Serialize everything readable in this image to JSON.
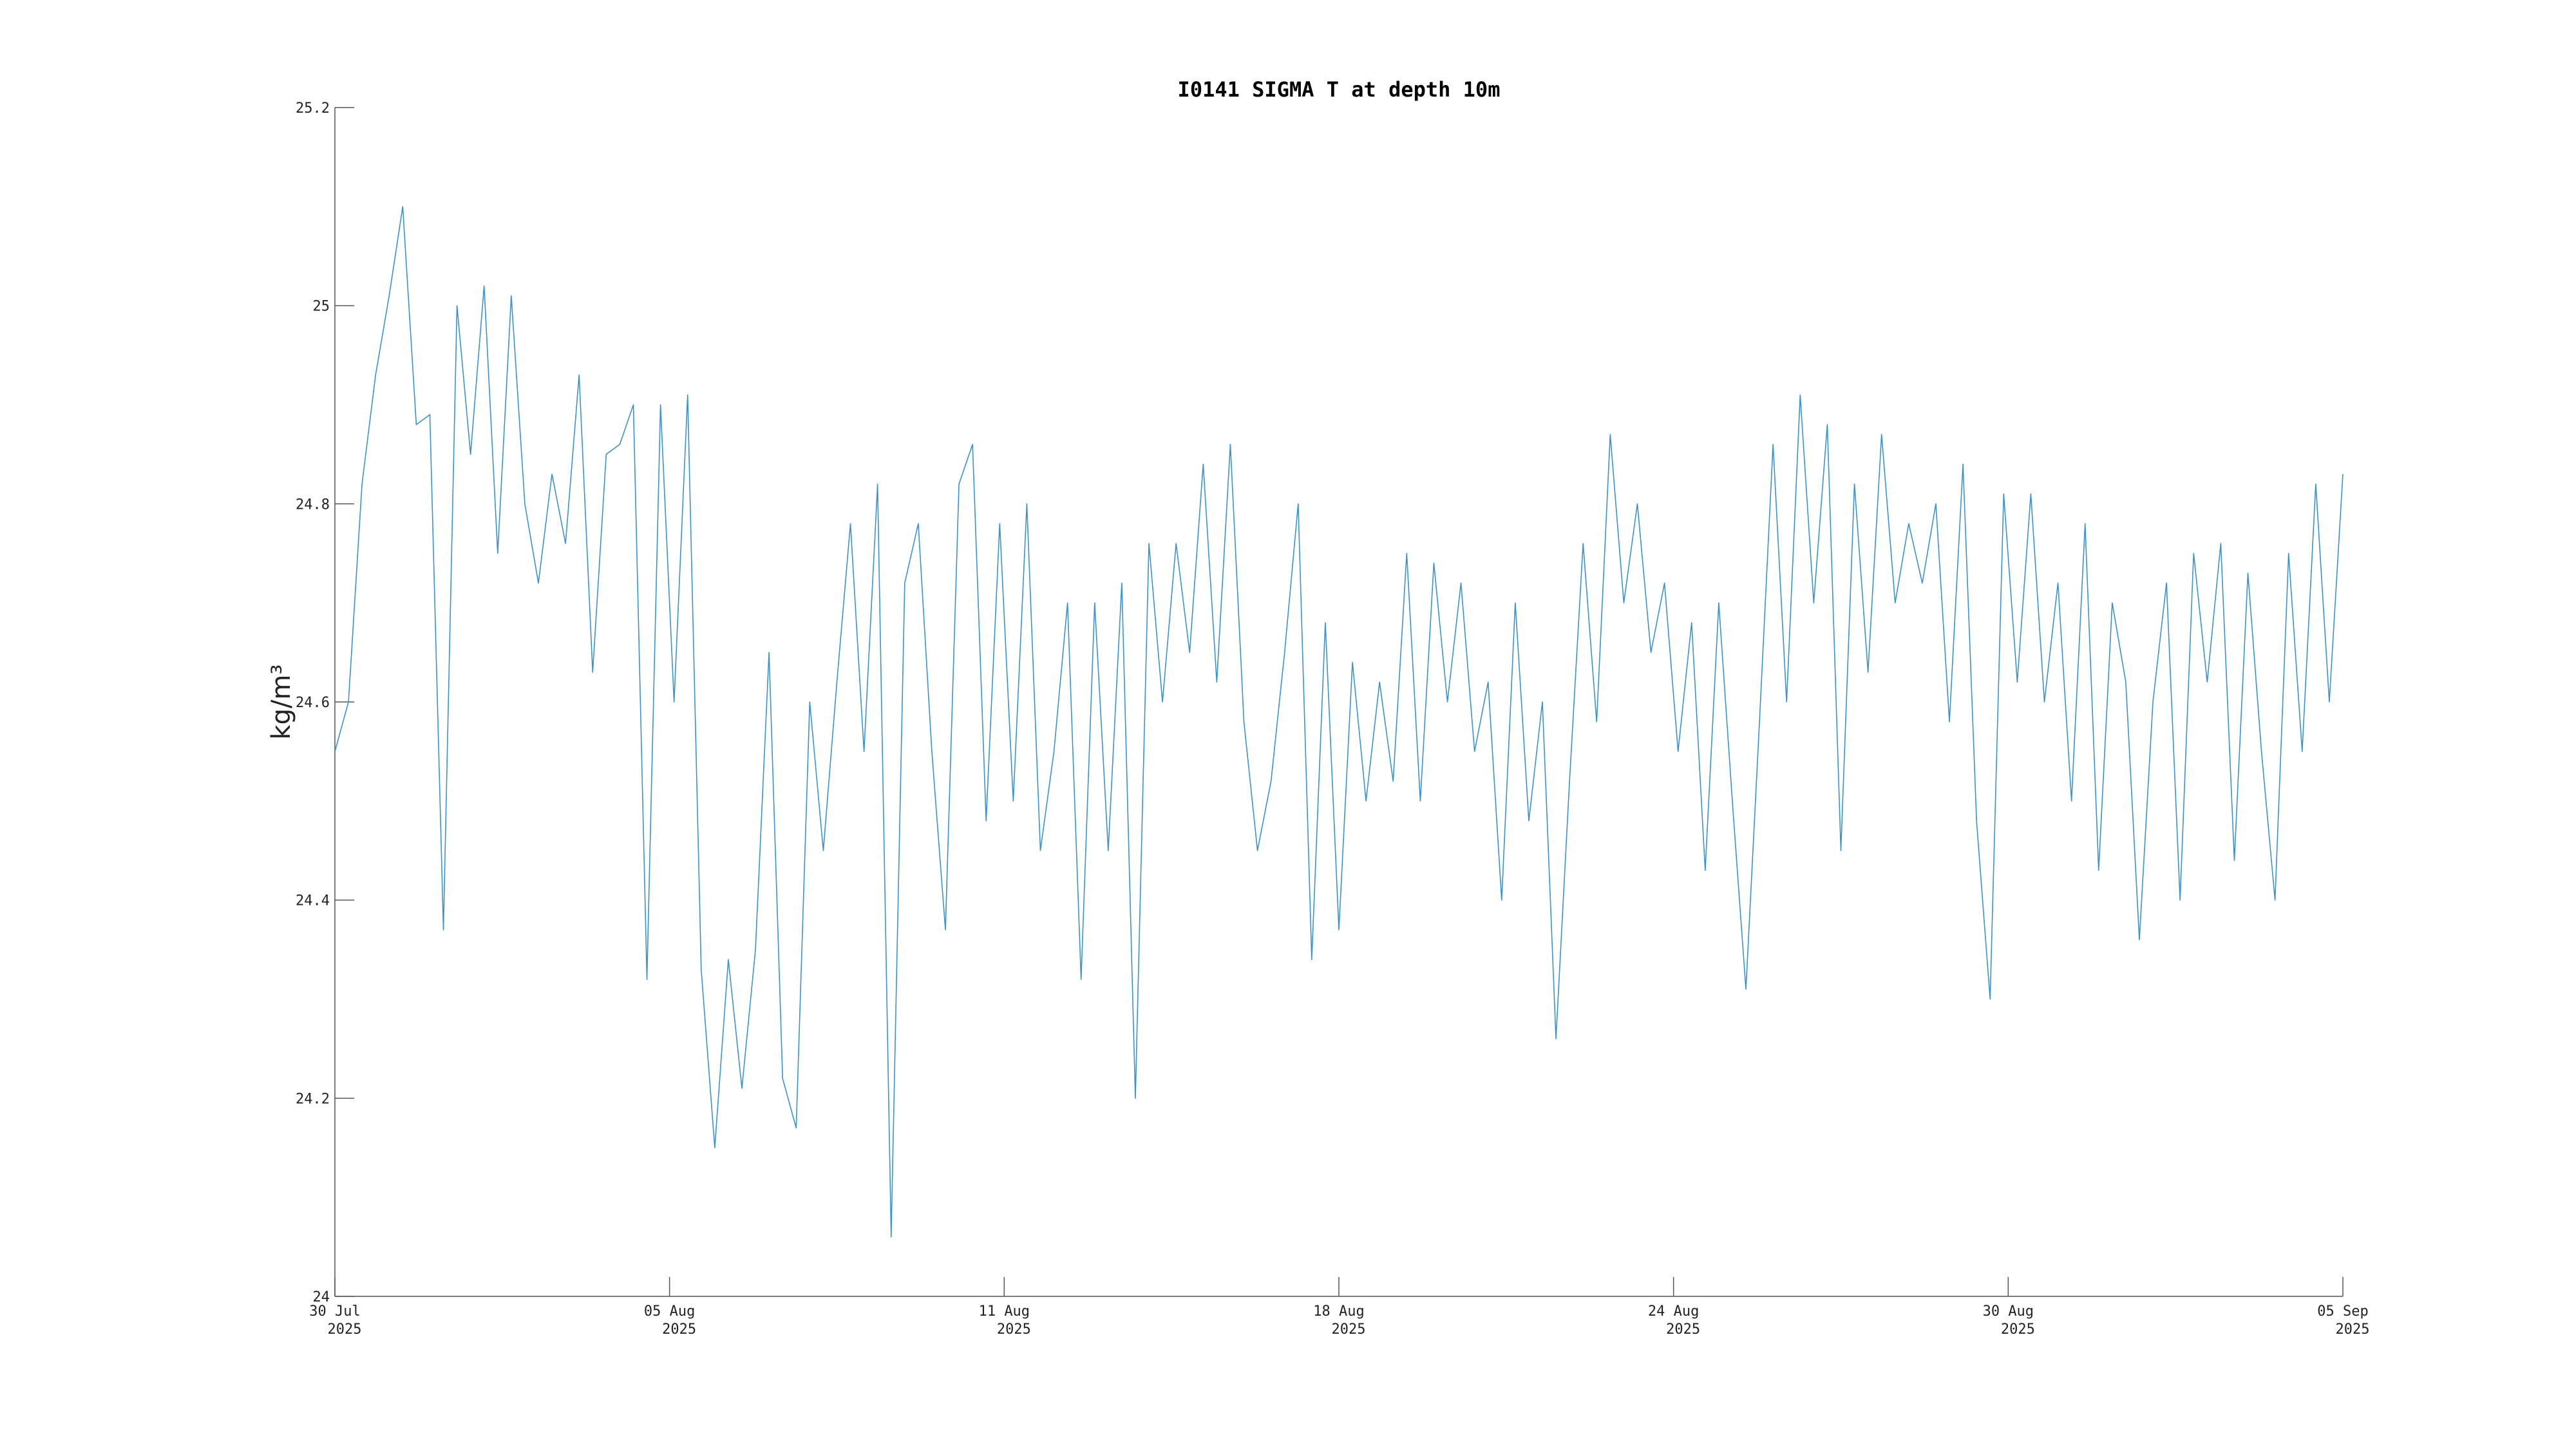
{
  "chart_data": {
    "type": "line",
    "title": "I0141 SIGMA T at depth 10m",
    "ylabel": "kg/m³",
    "color": "#3a93d0",
    "xlim": [
      "2025-07-30T00:00",
      "2025-09-05T00:00"
    ],
    "xticks": [
      {
        "value": "2025-07-30T00:00",
        "label": [
          "30 Jul",
          "2025"
        ]
      },
      {
        "value": "2025-08-05T04:00",
        "label": [
          "05 Aug",
          "2025"
        ]
      },
      {
        "value": "2025-08-11T08:00",
        "label": [
          "11 Aug",
          "2025"
        ]
      },
      {
        "value": "2025-08-17T12:00",
        "label": [
          "18 Aug",
          "2025"
        ]
      },
      {
        "value": "2025-08-23T16:00",
        "label": [
          "24 Aug",
          "2025"
        ]
      },
      {
        "value": "2025-08-29T20:00",
        "label": [
          "30 Aug",
          "2025"
        ]
      },
      {
        "value": "2025-09-05T00:00",
        "label": [
          "05 Sep",
          "2025"
        ]
      }
    ],
    "ylim": [
      24,
      25.2
    ],
    "yticks": [
      24,
      24.2,
      24.4,
      24.6,
      24.8,
      25,
      25.2
    ],
    "x": [
      "2025-07-30T00:00",
      "2025-07-30T06:00",
      "2025-07-30T12:00",
      "2025-07-30T18:00",
      "2025-07-31T00:00",
      "2025-07-31T06:00",
      "2025-07-31T12:00",
      "2025-07-31T18:00",
      "2025-08-01T00:00",
      "2025-08-01T06:00",
      "2025-08-01T12:00",
      "2025-08-01T18:00",
      "2025-08-02T00:00",
      "2025-08-02T06:00",
      "2025-08-02T12:00",
      "2025-08-02T18:00",
      "2025-08-03T00:00",
      "2025-08-03T06:00",
      "2025-08-03T12:00",
      "2025-08-03T18:00",
      "2025-08-04T00:00",
      "2025-08-04T06:00",
      "2025-08-04T12:00",
      "2025-08-04T18:00",
      "2025-08-05T00:00",
      "2025-08-05T06:00",
      "2025-08-05T12:00",
      "2025-08-05T18:00",
      "2025-08-06T00:00",
      "2025-08-06T06:00",
      "2025-08-06T12:00",
      "2025-08-06T18:00",
      "2025-08-07T00:00",
      "2025-08-07T06:00",
      "2025-08-07T12:00",
      "2025-08-07T18:00",
      "2025-08-08T00:00",
      "2025-08-08T06:00",
      "2025-08-08T12:00",
      "2025-08-08T18:00",
      "2025-08-09T00:00",
      "2025-08-09T06:00",
      "2025-08-09T12:00",
      "2025-08-09T18:00",
      "2025-08-10T00:00",
      "2025-08-10T06:00",
      "2025-08-10T12:00",
      "2025-08-10T18:00",
      "2025-08-11T00:00",
      "2025-08-11T06:00",
      "2025-08-11T12:00",
      "2025-08-11T18:00",
      "2025-08-12T00:00",
      "2025-08-12T06:00",
      "2025-08-12T12:00",
      "2025-08-12T18:00",
      "2025-08-13T00:00",
      "2025-08-13T06:00",
      "2025-08-13T12:00",
      "2025-08-13T18:00",
      "2025-08-14T00:00",
      "2025-08-14T06:00",
      "2025-08-14T12:00",
      "2025-08-14T18:00",
      "2025-08-15T00:00",
      "2025-08-15T06:00",
      "2025-08-15T12:00",
      "2025-08-15T18:00",
      "2025-08-16T00:00",
      "2025-08-16T06:00",
      "2025-08-16T12:00",
      "2025-08-16T18:00",
      "2025-08-17T00:00",
      "2025-08-17T06:00",
      "2025-08-17T12:00",
      "2025-08-17T18:00",
      "2025-08-18T00:00",
      "2025-08-18T06:00",
      "2025-08-18T12:00",
      "2025-08-18T18:00",
      "2025-08-19T00:00",
      "2025-08-19T06:00",
      "2025-08-19T12:00",
      "2025-08-19T18:00",
      "2025-08-20T00:00",
      "2025-08-20T06:00",
      "2025-08-20T12:00",
      "2025-08-20T18:00",
      "2025-08-21T00:00",
      "2025-08-21T06:00",
      "2025-08-21T12:00",
      "2025-08-21T18:00",
      "2025-08-22T00:00",
      "2025-08-22T06:00",
      "2025-08-22T12:00",
      "2025-08-22T18:00",
      "2025-08-23T00:00",
      "2025-08-23T06:00",
      "2025-08-23T12:00",
      "2025-08-23T18:00",
      "2025-08-24T00:00",
      "2025-08-24T06:00",
      "2025-08-24T12:00",
      "2025-08-24T18:00",
      "2025-08-25T00:00",
      "2025-08-25T06:00",
      "2025-08-25T12:00",
      "2025-08-25T18:00",
      "2025-08-26T00:00",
      "2025-08-26T06:00",
      "2025-08-26T12:00",
      "2025-08-26T18:00",
      "2025-08-27T00:00",
      "2025-08-27T06:00",
      "2025-08-27T12:00",
      "2025-08-27T18:00",
      "2025-08-28T00:00",
      "2025-08-28T06:00",
      "2025-08-28T12:00",
      "2025-08-28T18:00",
      "2025-08-29T00:00",
      "2025-08-29T06:00",
      "2025-08-29T12:00",
      "2025-08-29T18:00",
      "2025-08-30T00:00",
      "2025-08-30T06:00",
      "2025-08-30T12:00",
      "2025-08-30T18:00",
      "2025-08-31T00:00",
      "2025-08-31T06:00",
      "2025-08-31T12:00",
      "2025-08-31T18:00",
      "2025-09-01T00:00",
      "2025-09-01T06:00",
      "2025-09-01T12:00",
      "2025-09-01T18:00",
      "2025-09-02T00:00",
      "2025-09-02T06:00",
      "2025-09-02T12:00",
      "2025-09-02T18:00",
      "2025-09-03T00:00",
      "2025-09-03T06:00",
      "2025-09-03T12:00",
      "2025-09-03T18:00",
      "2025-09-04T00:00",
      "2025-09-04T06:00",
      "2025-09-04T12:00",
      "2025-09-04T18:00",
      "2025-09-05T00:00"
    ],
    "values": [
      24.55,
      24.6,
      24.82,
      24.93,
      25.01,
      25.1,
      24.88,
      24.89,
      24.37,
      25.0,
      24.85,
      25.02,
      24.75,
      25.01,
      24.8,
      24.72,
      24.83,
      24.76,
      24.93,
      24.63,
      24.85,
      24.86,
      24.9,
      24.32,
      24.9,
      24.6,
      24.91,
      24.33,
      24.15,
      24.34,
      24.21,
      24.35,
      24.65,
      24.22,
      24.17,
      24.6,
      24.45,
      24.62,
      24.78,
      24.55,
      24.82,
      24.06,
      24.72,
      24.78,
      24.55,
      24.37,
      24.82,
      24.86,
      24.48,
      24.78,
      24.5,
      24.8,
      24.45,
      24.55,
      24.7,
      24.32,
      24.7,
      24.45,
      24.72,
      24.2,
      24.76,
      24.6,
      24.76,
      24.65,
      24.84,
      24.62,
      24.86,
      24.58,
      24.45,
      24.52,
      24.65,
      24.8,
      24.34,
      24.68,
      24.37,
      24.64,
      24.5,
      24.62,
      24.52,
      24.75,
      24.5,
      24.74,
      24.6,
      24.72,
      24.55,
      24.62,
      24.4,
      24.7,
      24.48,
      24.6,
      24.26,
      24.52,
      24.76,
      24.58,
      24.87,
      24.7,
      24.8,
      24.65,
      24.72,
      24.55,
      24.68,
      24.43,
      24.7,
      24.5,
      24.31,
      24.58,
      24.86,
      24.6,
      24.91,
      24.7,
      24.88,
      24.45,
      24.82,
      24.63,
      24.87,
      24.7,
      24.78,
      24.72,
      24.8,
      24.58,
      24.84,
      24.48,
      24.3,
      24.81,
      24.62,
      24.81,
      24.6,
      24.72,
      24.5,
      24.78,
      24.43,
      24.7,
      24.62,
      24.36,
      24.6,
      24.72,
      24.4,
      24.75,
      24.62,
      24.76,
      24.44,
      24.73,
      24.55,
      24.4,
      24.75,
      24.55,
      24.82,
      24.6,
      24.83
    ]
  }
}
